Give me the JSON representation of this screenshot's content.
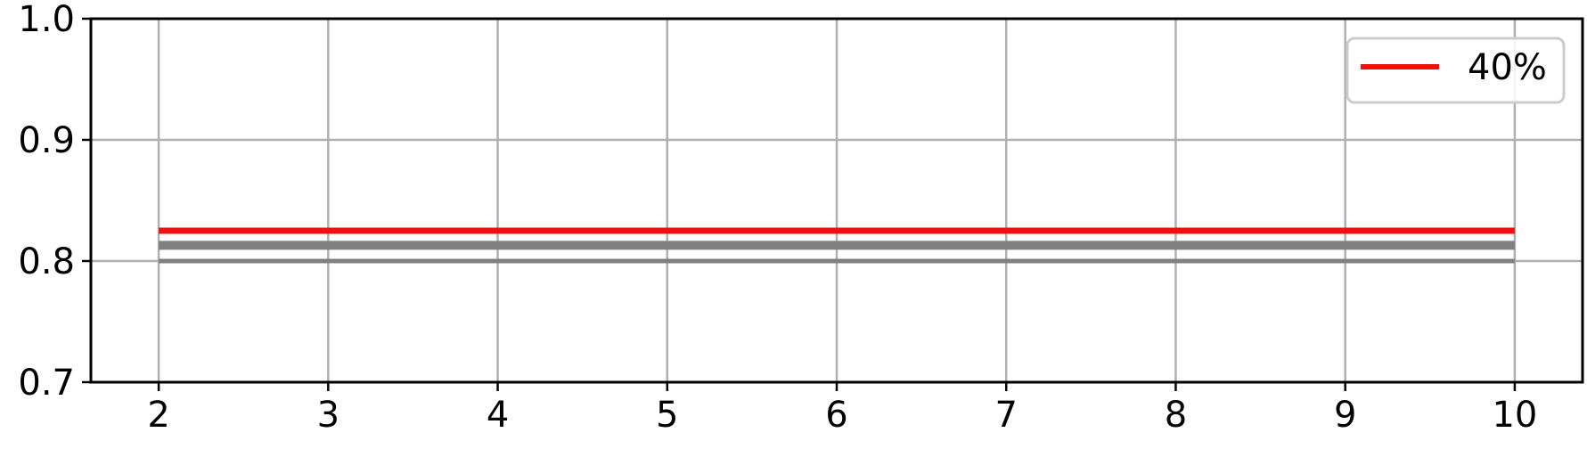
{
  "chart_data": {
    "type": "line",
    "title": "",
    "xlabel": "",
    "ylabel": "",
    "xlim": [
      1.6,
      10.4
    ],
    "ylim": [
      0.7,
      1.0
    ],
    "x_ticks": [
      2,
      3,
      4,
      5,
      6,
      7,
      8,
      9,
      10
    ],
    "y_ticks": [
      0.7,
      0.8,
      0.9,
      1.0
    ],
    "x_tick_labels": [
      "2",
      "3",
      "4",
      "5",
      "6",
      "7",
      "8",
      "9",
      "10"
    ],
    "y_tick_labels": [
      "0.7",
      "0.8",
      "0.9",
      "1.0"
    ],
    "grid": true,
    "legend_position": "top-right",
    "series": [
      {
        "name": "40%",
        "color": "#ee1111",
        "x": [
          2,
          10
        ],
        "y": [
          0.825,
          0.825
        ],
        "legend": true
      },
      {
        "color": "#808080",
        "x": [
          2,
          10
        ],
        "y": [
          0.813,
          0.813
        ],
        "legend": false
      },
      {
        "color": "#808080",
        "x": [
          2,
          10
        ],
        "y": [
          0.8,
          0.8
        ],
        "legend": false
      }
    ]
  }
}
